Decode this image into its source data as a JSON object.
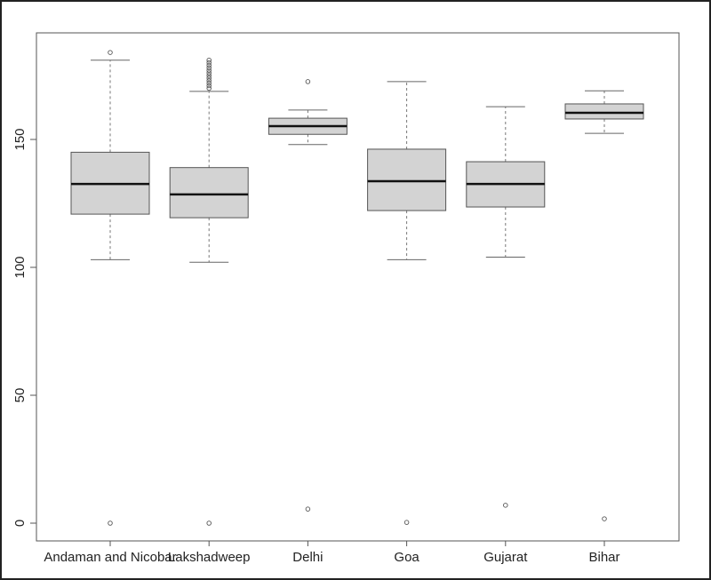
{
  "chart_data": {
    "type": "boxplot",
    "title": "",
    "xlabel": "",
    "ylabel": "",
    "ylim": [
      -7,
      192
    ],
    "y_ticks": [
      0,
      50,
      100,
      150
    ],
    "grid": false,
    "legend": null,
    "box_fill": "#d3d3d3",
    "categories": [
      "Andaman and Nicobar",
      "Lakshadweep",
      "Delhi",
      "Goa",
      "Gujarat",
      "Bihar"
    ],
    "series": [
      {
        "name": "Andaman and Nicobar",
        "whisker_low": 103,
        "q1": 120.8,
        "median": 132.6,
        "q3": 145.0,
        "whisker_high": 181,
        "outliers": [
          184,
          0
        ]
      },
      {
        "name": "Lakshadweep",
        "whisker_low": 102,
        "q1": 119.4,
        "median": 128.5,
        "q3": 139.0,
        "whisker_high": 168.8,
        "outliers": [
          170,
          171,
          172,
          173,
          174,
          175,
          176,
          177,
          178,
          179,
          180,
          181,
          0
        ]
      },
      {
        "name": "Delhi",
        "whisker_low": 148,
        "q1": 152.0,
        "median": 155.2,
        "q3": 158.3,
        "whisker_high": 161.5,
        "outliers": [
          172.6,
          5.5
        ]
      },
      {
        "name": "Goa",
        "whisker_low": 103,
        "q1": 122.2,
        "median": 133.7,
        "q3": 146.2,
        "whisker_high": 172.6,
        "outliers": [
          0.3
        ]
      },
      {
        "name": "Gujarat",
        "whisker_low": 104,
        "q1": 123.6,
        "median": 132.6,
        "q3": 141.3,
        "whisker_high": 162.8,
        "outliers": [
          7
        ]
      },
      {
        "name": "Bihar",
        "whisker_low": 152.4,
        "q1": 158.0,
        "median": 160.4,
        "q3": 163.9,
        "whisker_high": 169,
        "outliers": [
          1.7
        ]
      }
    ]
  }
}
